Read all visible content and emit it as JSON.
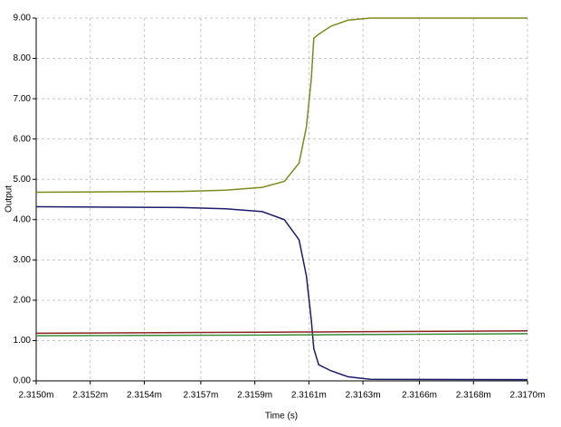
{
  "chart_data": {
    "type": "line",
    "x_label": "Time (s)",
    "y_label": "Output",
    "x": [
      2.315,
      2.31559,
      2.31577,
      2.31592,
      2.31601,
      2.31607,
      2.3161,
      2.31612,
      2.31613,
      2.31615,
      2.3162,
      2.31627,
      2.31636,
      2.317
    ],
    "series": [
      {
        "color": "#7f8a1e",
        "values": [
          4.68,
          4.7,
          4.73,
          4.8,
          4.95,
          5.4,
          6.3,
          7.5,
          8.5,
          8.6,
          8.8,
          8.95,
          9.0,
          9.0
        ]
      },
      {
        "color": "#1c1c6b",
        "values": [
          4.32,
          4.3,
          4.27,
          4.2,
          4.0,
          3.5,
          2.6,
          1.5,
          0.8,
          0.4,
          0.25,
          0.1,
          0.04,
          0.03
        ]
      },
      {
        "color": "#8b2323",
        "values": [
          1.18,
          1.198,
          1.203,
          1.207,
          1.21,
          1.211,
          1.212,
          1.213,
          1.213,
          1.213,
          1.215,
          1.217,
          1.22,
          1.24
        ]
      },
      {
        "color": "#3c8c3c",
        "values": [
          1.12,
          1.13,
          1.133,
          1.137,
          1.14,
          1.141,
          1.142,
          1.143,
          1.143,
          1.143,
          1.145,
          1.147,
          1.15,
          1.17
        ]
      }
    ],
    "xlim": [
      2.315,
      2.317
    ],
    "xticks": [
      {
        "value": 2.315,
        "label": "2.3150m"
      },
      {
        "value": 2.31522,
        "label": "2.3152m"
      },
      {
        "value": 2.31544,
        "label": "2.3154m"
      },
      {
        "value": 2.31567,
        "label": "2.3157m"
      },
      {
        "value": 2.31589,
        "label": "2.3159m"
      },
      {
        "value": 2.31611,
        "label": "2.3161m"
      },
      {
        "value": 2.31633,
        "label": "2.3163m"
      },
      {
        "value": 2.31656,
        "label": "2.3166m"
      },
      {
        "value": 2.31678,
        "label": "2.3168m"
      },
      {
        "value": 2.317,
        "label": "2.3170m"
      }
    ],
    "ylim": [
      0,
      9
    ],
    "yticks": [
      {
        "value": 0,
        "label": "0.00"
      },
      {
        "value": 1,
        "label": "1.00"
      },
      {
        "value": 2,
        "label": "2.00"
      },
      {
        "value": 3,
        "label": "3.00"
      },
      {
        "value": 4,
        "label": "4.00"
      },
      {
        "value": 5,
        "label": "5.00"
      },
      {
        "value": 6,
        "label": "6.00"
      },
      {
        "value": 7,
        "label": "7.00"
      },
      {
        "value": 8,
        "label": "8.00"
      },
      {
        "value": 9,
        "label": "9.00"
      }
    ],
    "grid": true
  }
}
